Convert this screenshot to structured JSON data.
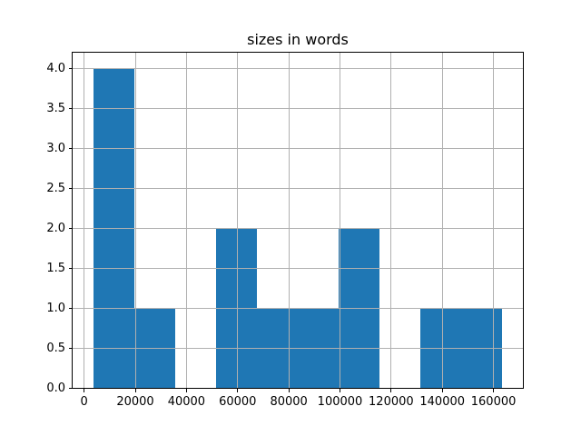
{
  "chart_data": {
    "type": "bar",
    "chart_kind": "histogram",
    "title": "sizes in words",
    "xlabel": "",
    "ylabel": "",
    "bin_edges": [
      3500,
      19500,
      35500,
      51500,
      67500,
      83500,
      99500,
      115500,
      131500,
      147500,
      163500
    ],
    "counts": [
      4,
      1,
      0,
      2,
      1,
      1,
      2,
      0,
      1,
      1
    ],
    "xticks": [
      0,
      20000,
      40000,
      60000,
      80000,
      100000,
      120000,
      140000,
      160000
    ],
    "xtick_labels": [
      "0",
      "20000",
      "40000",
      "60000",
      "80000",
      "100000",
      "120000",
      "140000",
      "160000"
    ],
    "yticks": [
      0,
      0.5,
      1,
      1.5,
      2,
      2.5,
      3,
      3.5,
      4
    ],
    "ytick_labels": [
      "0.0",
      "0.5",
      "1.0",
      "1.5",
      "2.0",
      "2.5",
      "3.0",
      "3.5",
      "4.0"
    ],
    "xlim": [
      -4500,
      171500
    ],
    "ylim": [
      0,
      4.2
    ],
    "grid": true,
    "legend_position": "none",
    "bar_color": "#1f77b4",
    "grid_color": "#b0b0b0",
    "spine_color": "#000000",
    "background_color": "#ffffff",
    "text_color": "#000000"
  }
}
